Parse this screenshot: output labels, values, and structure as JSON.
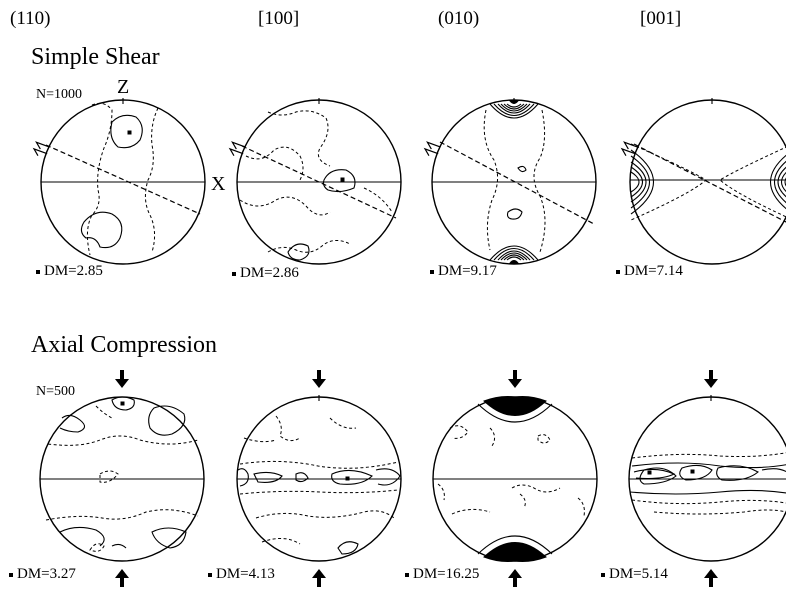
{
  "columns": [
    "(110)",
    "[100]",
    "(010)",
    "[001]"
  ],
  "rows": [
    {
      "title": "Simple Shear",
      "n_label": "N=1000",
      "axis_z": "Z",
      "axis_x": "X",
      "dm": [
        "DM=2.85",
        "DM=2.86",
        "DM=9.17",
        "DM=7.14"
      ]
    },
    {
      "title": "Axial Compression",
      "n_label": "N=500",
      "dm": [
        "DM=3.27",
        "DM=4.13",
        "DM=16.25",
        "DM=5.14"
      ]
    }
  ]
}
